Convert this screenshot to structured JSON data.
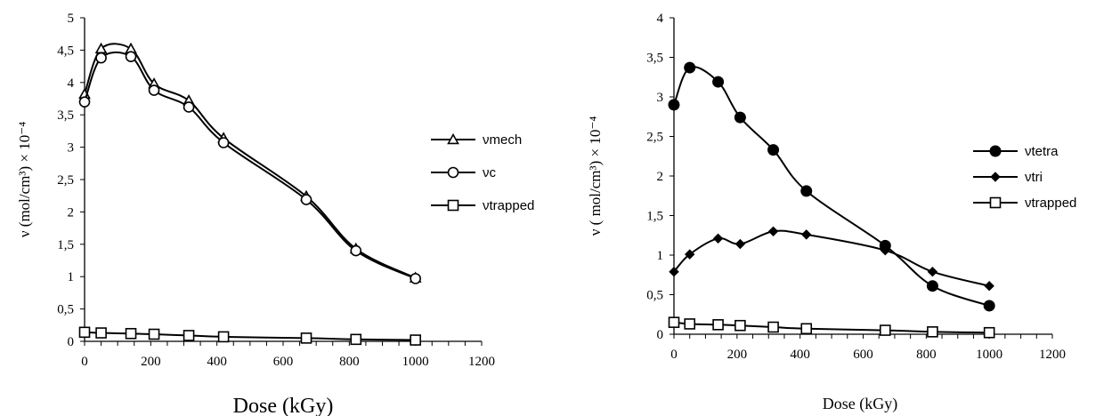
{
  "chart_data": [
    {
      "type": "line",
      "xlabel": "Dose (kGy)",
      "ylabel": "ν (mol/cm³) × 10⁻⁴",
      "xlim": [
        0,
        1200
      ],
      "ylim": [
        0,
        5
      ],
      "x_ticks": [
        "0",
        "200",
        "400",
        "600",
        "800",
        "1000",
        "1200"
      ],
      "y_ticks": [
        "0",
        "0,5",
        "1",
        "1,5",
        "2",
        "2,5",
        "3",
        "3,5",
        "4",
        "4,5",
        "5"
      ],
      "legend_position": "right",
      "series": [
        {
          "name": "νmech",
          "marker": "triangle-open",
          "x": [
            0,
            50,
            140,
            210,
            315,
            420,
            670,
            820,
            1000
          ],
          "y": [
            3.82,
            4.52,
            4.52,
            3.98,
            3.72,
            3.14,
            2.24,
            1.43,
            0.98
          ]
        },
        {
          "name": "νc",
          "marker": "circle-open",
          "x": [
            0,
            50,
            140,
            210,
            315,
            420,
            670,
            820,
            1000
          ],
          "y": [
            3.7,
            4.38,
            4.4,
            3.88,
            3.62,
            3.07,
            2.19,
            1.4,
            0.97
          ]
        },
        {
          "name": "νtrapped",
          "marker": "square-open",
          "x": [
            0,
            50,
            140,
            210,
            315,
            420,
            670,
            820,
            1000
          ],
          "y": [
            0.14,
            0.13,
            0.12,
            0.11,
            0.09,
            0.07,
            0.05,
            0.03,
            0.02
          ]
        }
      ]
    },
    {
      "type": "line",
      "xlabel": "Dose (kGy)",
      "ylabel": "ν ( mol/cm³) × 10⁻⁴",
      "xlim": [
        0,
        1200
      ],
      "ylim": [
        0,
        4
      ],
      "x_ticks": [
        "0",
        "200",
        "400",
        "600",
        "800",
        "1000",
        "1200"
      ],
      "y_ticks": [
        "0",
        "0,5",
        "1",
        "1,5",
        "2",
        "2,5",
        "3",
        "3,5",
        "4"
      ],
      "legend_position": "right",
      "series": [
        {
          "name": "νtetra",
          "marker": "circle-filled",
          "x": [
            0,
            50,
            140,
            210,
            315,
            420,
            670,
            820,
            1000
          ],
          "y": [
            2.9,
            3.37,
            3.19,
            2.74,
            2.33,
            1.81,
            1.12,
            0.61,
            0.36
          ]
        },
        {
          "name": "νtri",
          "marker": "diamond-filled",
          "x": [
            0,
            50,
            140,
            210,
            315,
            420,
            670,
            820,
            1000
          ],
          "y": [
            0.79,
            1.01,
            1.21,
            1.14,
            1.3,
            1.26,
            1.06,
            0.79,
            0.61
          ]
        },
        {
          "name": "νtrapped",
          "marker": "square-open",
          "x": [
            0,
            50,
            140,
            210,
            315,
            420,
            670,
            820,
            1000
          ],
          "y": [
            0.15,
            0.13,
            0.12,
            0.11,
            0.09,
            0.07,
            0.05,
            0.03,
            0.02
          ]
        }
      ]
    }
  ]
}
